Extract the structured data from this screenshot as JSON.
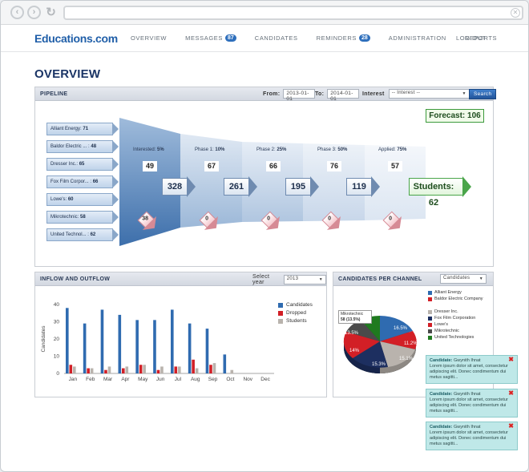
{
  "browser": {
    "back": "‹",
    "forward": "›",
    "reload": "↻",
    "close": "✕"
  },
  "header": {
    "logo": "Educations.com",
    "menu": [
      {
        "label": "OVERVIEW"
      },
      {
        "label": "MESSAGES",
        "badge": "87"
      },
      {
        "label": "CANDIDATES"
      },
      {
        "label": "REMINDERS",
        "badge": "28"
      },
      {
        "label": "ADMINISTRATION"
      },
      {
        "label": "REPORTS"
      }
    ],
    "logout": "LOG OUT"
  },
  "page": {
    "title": "OVERVIEW"
  },
  "pipeline": {
    "title": "PIPELINE",
    "from_label": "From:",
    "from_value": "2013-01-01",
    "to_label": "To:",
    "to_value": "2014-01-01",
    "interest_label": "Interest",
    "interest_value": "-- Interest --",
    "search_label": "Search",
    "forecast": "Forecast: 106",
    "companies": [
      {
        "name": "Alliant Energy: ",
        "count": "71"
      },
      {
        "name": "Baldor Electric ... : ",
        "count": "48"
      },
      {
        "name": "Dresser Inc.: ",
        "count": "65"
      },
      {
        "name": "Fox Film Corpor... : ",
        "count": "66"
      },
      {
        "name": "Lowe's: ",
        "count": "60"
      },
      {
        "name": "Mikrotechnic: ",
        "count": "58"
      },
      {
        "name": "United Technol... : ",
        "count": "62"
      }
    ],
    "stages": [
      {
        "label": "Interested: ",
        "pct": "5%",
        "value": "49",
        "flow": "328",
        "drop": "38"
      },
      {
        "label": "Phase 1: ",
        "pct": "10%",
        "value": "67",
        "flow": "261",
        "drop": "0"
      },
      {
        "label": "Phase 2: ",
        "pct": "25%",
        "value": "66",
        "flow": "195",
        "drop": "0"
      },
      {
        "label": "Phase 3: ",
        "pct": "50%",
        "value": "76",
        "flow": "119",
        "drop": "0"
      },
      {
        "label": "Applied: ",
        "pct": "75%",
        "value": "57",
        "drop": "0"
      }
    ],
    "students": "Students: 62"
  },
  "inflow": {
    "title": "INFLOW AND OUTFLOW",
    "year_label": "Select year",
    "year_value": "2013"
  },
  "chart_data": {
    "type": "bar",
    "categories": [
      "Jan",
      "Feb",
      "Mar",
      "Apr",
      "May",
      "Jun",
      "Jul",
      "Aug",
      "Sep",
      "Oct",
      "Nov",
      "Dec"
    ],
    "series": [
      {
        "name": "Candidates",
        "color": "#2f6bb0",
        "values": [
          38,
          29,
          37,
          34,
          31,
          31,
          37,
          29,
          26,
          11,
          0,
          0
        ]
      },
      {
        "name": "Dropped",
        "color": "#d21f26",
        "values": [
          5,
          3,
          2,
          3,
          5,
          2,
          4,
          8,
          5,
          0,
          0,
          0
        ]
      },
      {
        "name": "Students",
        "color": "#b9b3ad",
        "values": [
          4,
          3,
          4,
          4,
          5,
          4,
          4,
          3,
          6,
          2,
          0,
          0
        ]
      }
    ],
    "ylabel": "Candidates",
    "ylim": [
      0,
      40
    ],
    "yticks": [
      "0",
      "10",
      "20",
      "30",
      "40"
    ],
    "legend": "right"
  },
  "channels": {
    "title": "CANDIDATES PER CHANNEL",
    "select_value": "Candidates",
    "callout_name": "Mikrotechnic",
    "callout_value": "58 (13.5%)",
    "legend": [
      {
        "name": "Alliant Energy",
        "color": "#2f6bb0"
      },
      {
        "name": "Baldor Electric Company",
        "color": "#d21f26"
      },
      {
        "name": "Dresser Inc.",
        "color": "#b9b3ad"
      },
      {
        "name": "Fox Film Corporation",
        "color": "#1d2f60"
      },
      {
        "name": "Lowe's",
        "color": "#d21f26"
      },
      {
        "name": "Mikrotechnic",
        "color": "#4a4a4a"
      },
      {
        "name": "United Technologies",
        "color": "#1f7a1f"
      }
    ],
    "slice_labels": [
      "16.5%",
      "11.2%",
      "15.1%",
      "15.3%",
      "14%",
      "13.5%"
    ]
  },
  "notifications": [
    {
      "title": "Candidate:",
      "name": " Gwynith Ihnat",
      "text": "Lorem ipsum dolor sit amet, consectetur adipiscing elit. Donec condimentum dui metus sagitti..."
    },
    {
      "title": "Candidate:",
      "name": " Gwynith Ihnat",
      "text": "Lorem ipsum dolor sit amet, consectetur adipiscing elit. Donec condimentum dui metus sagitti..."
    },
    {
      "title": "Candidate:",
      "name": " Gwynith Ihnat",
      "text": "Lorem ipsum dolor sit amet, consectetur adipiscing elit. Donec condimentum dui metus sagitti..."
    }
  ]
}
